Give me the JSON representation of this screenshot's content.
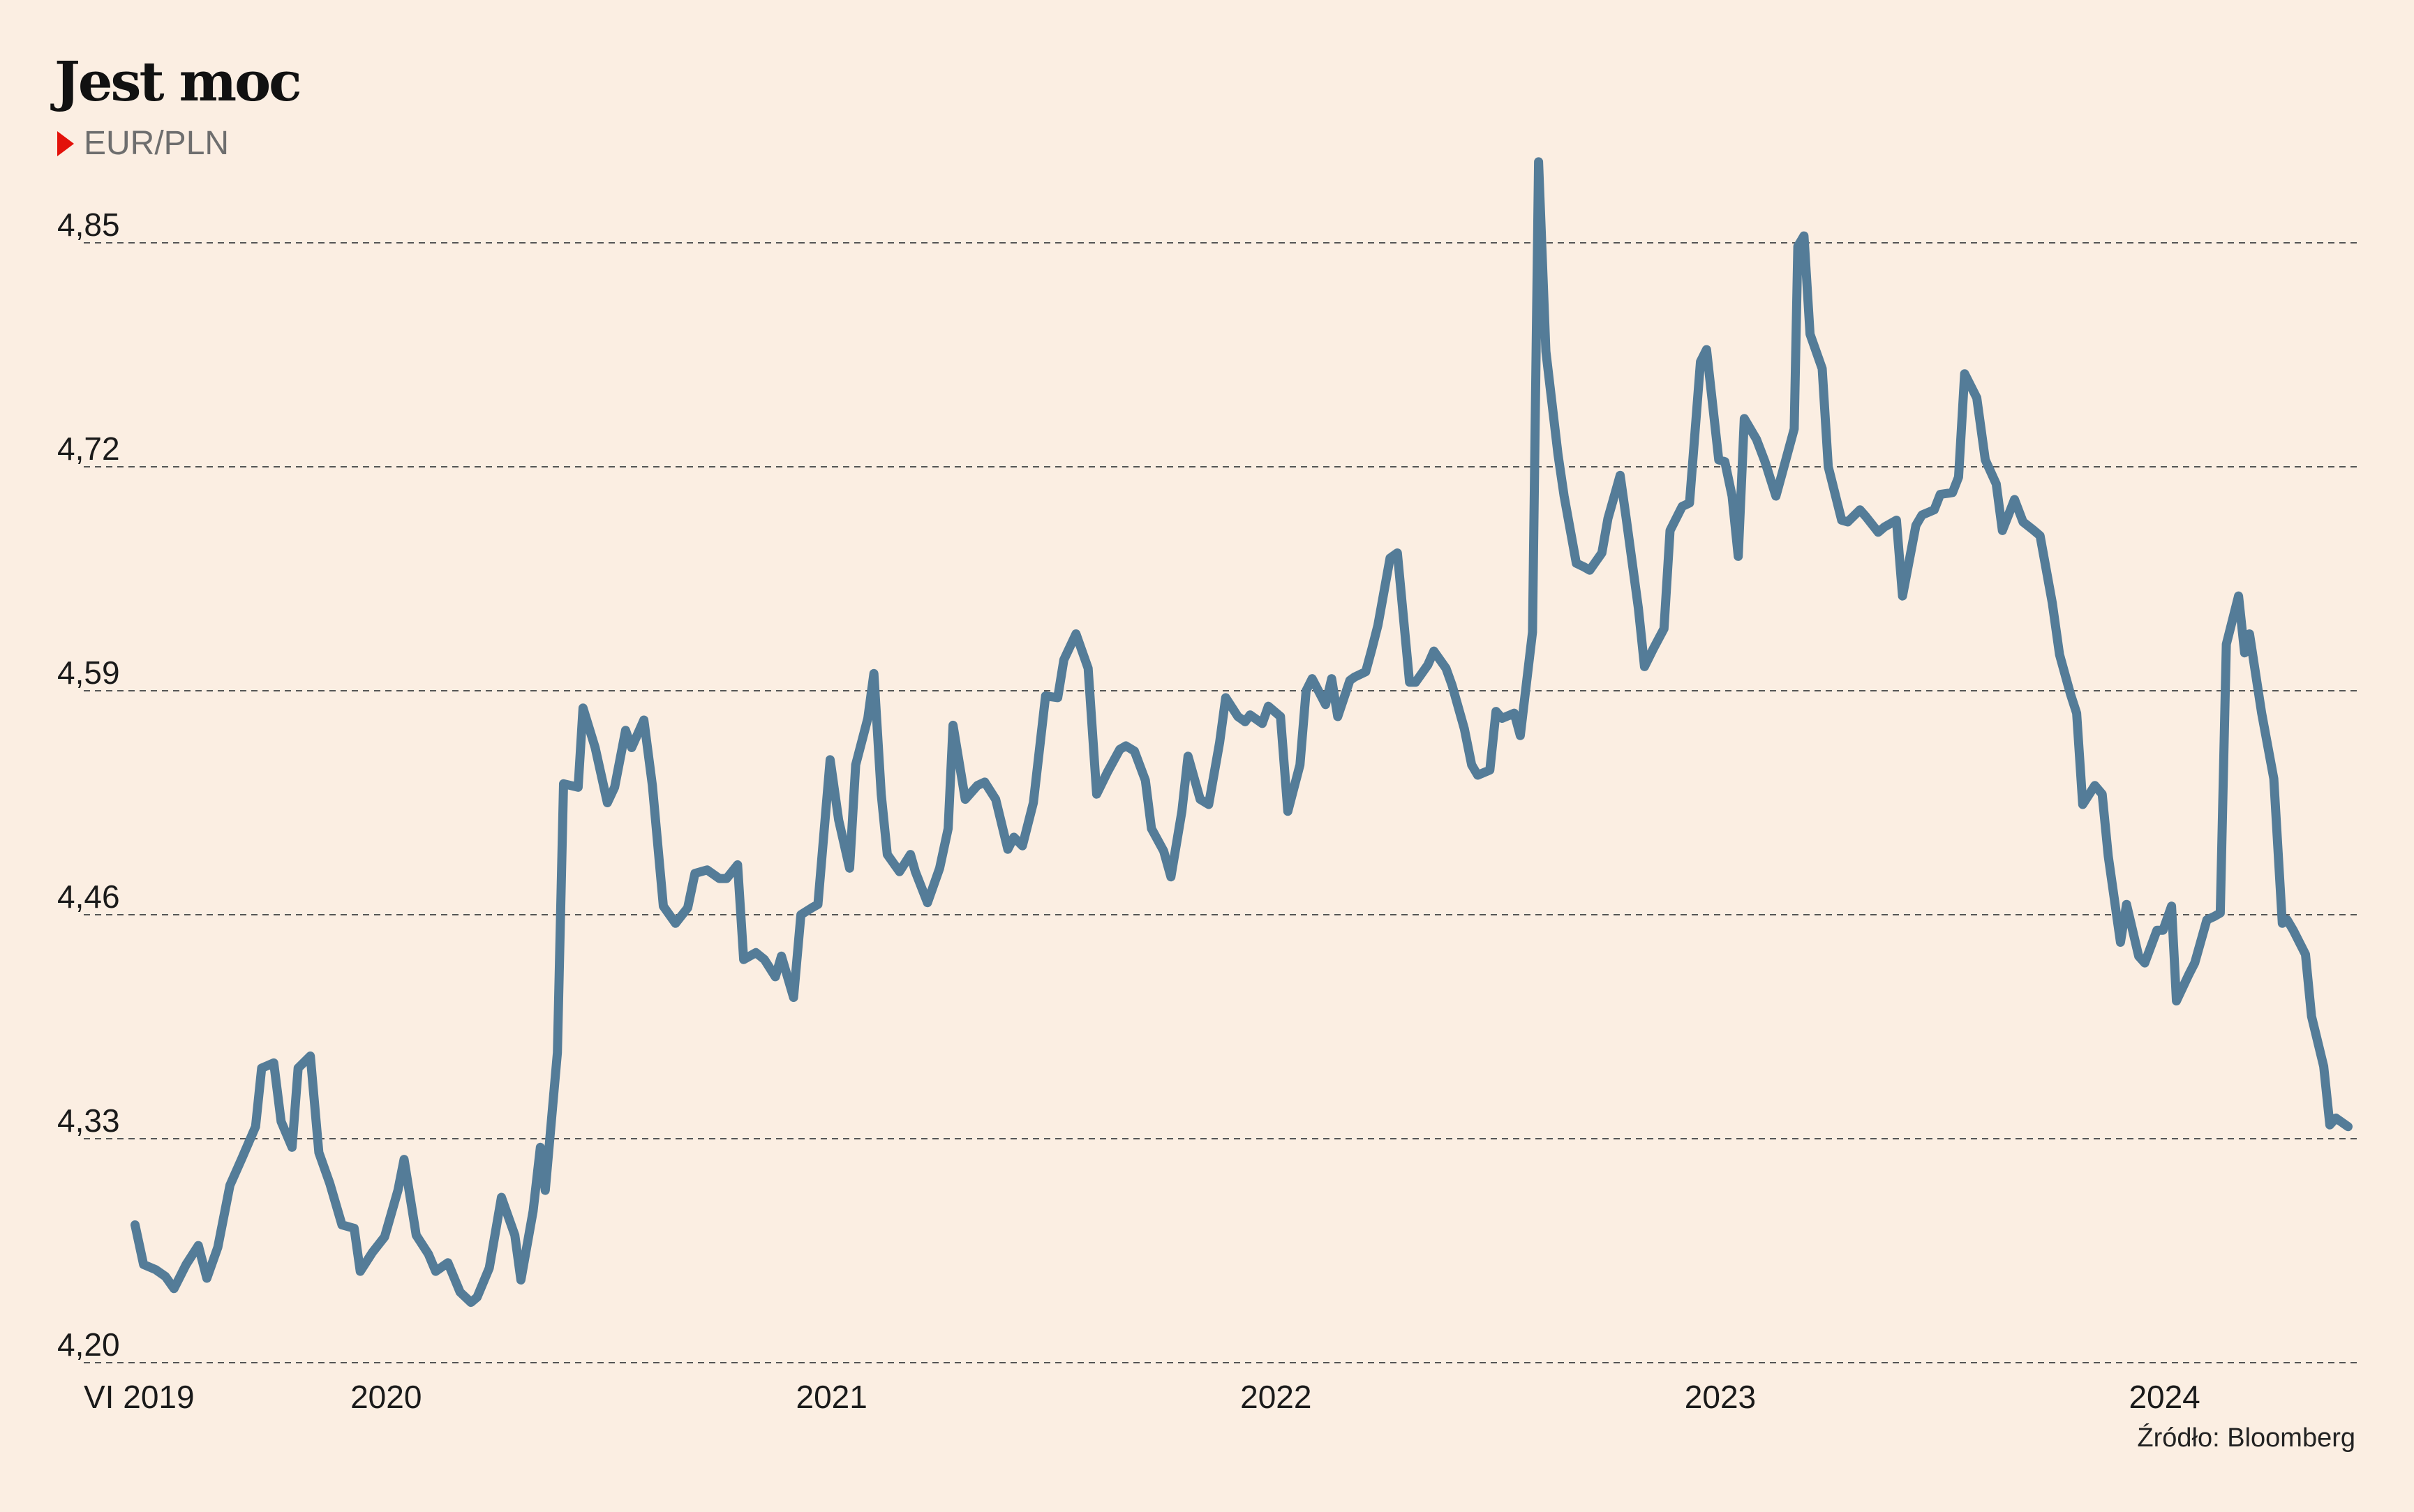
{
  "title": "Jest moc",
  "subtitle": "EUR/PLN",
  "source": "Źródło: Bloomberg",
  "colors": {
    "line": "#547C98",
    "background": "#FBEEE2",
    "marker": "#E3120B",
    "grid": "#555555"
  },
  "chart_data": {
    "type": "line",
    "title": "Jest moc",
    "subtitle": "EUR/PLN",
    "xlabel": "",
    "ylabel": "",
    "ylim": [
      4.2,
      4.85
    ],
    "xlim": [
      "2019-06",
      "2024-05"
    ],
    "yticks": [
      "4,20",
      "4,33",
      "4,46",
      "4,59",
      "4,72",
      "4,85"
    ],
    "ytick_values": [
      4.2,
      4.33,
      4.46,
      4.59,
      4.72,
      4.85
    ],
    "xticks": [
      {
        "label": "VI 2019",
        "date": "2019-06"
      },
      {
        "label": "2020",
        "date": "2020-01"
      },
      {
        "label": "2021",
        "date": "2021-01"
      },
      {
        "label": "2022",
        "date": "2022-01"
      },
      {
        "label": "2023",
        "date": "2023-01"
      },
      {
        "label": "2024",
        "date": "2024-01"
      }
    ],
    "grid": "horizontal dashed",
    "series": [
      {
        "points": [
          [
            "2019-06-03",
            4.28
          ],
          [
            "2019-06-10",
            4.257
          ],
          [
            "2019-06-20",
            4.254
          ],
          [
            "2019-06-28",
            4.25
          ],
          [
            "2019-07-05",
            4.243
          ],
          [
            "2019-07-15",
            4.257
          ],
          [
            "2019-07-25",
            4.268
          ],
          [
            "2019-08-01",
            4.249
          ],
          [
            "2019-08-10",
            4.267
          ],
          [
            "2019-08-20",
            4.303
          ],
          [
            "2019-08-30",
            4.319
          ],
          [
            "2019-09-10",
            4.337
          ],
          [
            "2019-09-15",
            4.371
          ],
          [
            "2019-09-25",
            4.374
          ],
          [
            "2019-10-01",
            4.34
          ],
          [
            "2019-10-10",
            4.325
          ],
          [
            "2019-10-15",
            4.371
          ],
          [
            "2019-10-25",
            4.378
          ],
          [
            "2019-11-01",
            4.322
          ],
          [
            "2019-11-10",
            4.304
          ],
          [
            "2019-11-20",
            4.28
          ],
          [
            "2019-11-30",
            4.278
          ],
          [
            "2019-12-05",
            4.253
          ],
          [
            "2019-12-15",
            4.264
          ],
          [
            "2019-12-25",
            4.273
          ],
          [
            "2020-01-05",
            4.3
          ],
          [
            "2020-01-10",
            4.318
          ],
          [
            "2020-01-20",
            4.274
          ],
          [
            "2020-01-30",
            4.263
          ],
          [
            "2020-02-05",
            4.253
          ],
          [
            "2020-02-15",
            4.258
          ],
          [
            "2020-02-25",
            4.241
          ],
          [
            "2020-03-05",
            4.235
          ],
          [
            "2020-03-10",
            4.238
          ],
          [
            "2020-03-20",
            4.255
          ],
          [
            "2020-03-30",
            4.296
          ],
          [
            "2020-04-10",
            4.274
          ],
          [
            "2020-04-15",
            4.248
          ],
          [
            "2020-04-25",
            4.288
          ],
          [
            "2020-05-01",
            4.325
          ],
          [
            "2020-05-05",
            4.3
          ],
          [
            "2020-05-15",
            4.38
          ],
          [
            "2020-05-20",
            4.536
          ],
          [
            "2020-06-01",
            4.534
          ],
          [
            "2020-06-05",
            4.58
          ],
          [
            "2020-06-15",
            4.557
          ],
          [
            "2020-06-25",
            4.525
          ],
          [
            "2020-07-01",
            4.534
          ],
          [
            "2020-07-10",
            4.567
          ],
          [
            "2020-07-15",
            4.557
          ],
          [
            "2020-07-25",
            4.573
          ],
          [
            "2020-08-01",
            4.535
          ],
          [
            "2020-08-10",
            4.465
          ],
          [
            "2020-08-20",
            4.455
          ],
          [
            "2020-08-30",
            4.464
          ],
          [
            "2020-09-05",
            4.484
          ],
          [
            "2020-09-15",
            4.486
          ],
          [
            "2020-09-25",
            4.481
          ],
          [
            "2020-10-01",
            4.481
          ],
          [
            "2020-10-10",
            4.489
          ],
          [
            "2020-10-15",
            4.434
          ],
          [
            "2020-10-25",
            4.438
          ],
          [
            "2020-11-01",
            4.434
          ],
          [
            "2020-11-10",
            4.424
          ],
          [
            "2020-11-15",
            4.436
          ],
          [
            "2020-11-25",
            4.412
          ],
          [
            "2020-12-01",
            4.46
          ],
          [
            "2020-12-10",
            4.464
          ],
          [
            "2020-12-15",
            4.466
          ],
          [
            "2020-12-25",
            4.55
          ],
          [
            "2021-01-01",
            4.515
          ],
          [
            "2021-01-10",
            4.487
          ],
          [
            "2021-01-15",
            4.547
          ],
          [
            "2021-01-25",
            4.574
          ],
          [
            "2021-01-30",
            4.6
          ],
          [
            "2021-02-05",
            4.53
          ],
          [
            "2021-02-10",
            4.495
          ],
          [
            "2021-02-20",
            4.485
          ],
          [
            "2021-03-01",
            4.495
          ],
          [
            "2021-03-05",
            4.485
          ],
          [
            "2021-03-15",
            4.467
          ],
          [
            "2021-03-25",
            4.487
          ],
          [
            "2021-04-01",
            4.51
          ],
          [
            "2021-04-05",
            4.57
          ],
          [
            "2021-04-15",
            4.527
          ],
          [
            "2021-04-25",
            4.535
          ],
          [
            "2021-05-01",
            4.537
          ],
          [
            "2021-05-10",
            4.527
          ],
          [
            "2021-05-20",
            4.498
          ],
          [
            "2021-05-25",
            4.505
          ],
          [
            "2021-06-01",
            4.5
          ],
          [
            "2021-06-10",
            4.525
          ],
          [
            "2021-06-20",
            4.587
          ],
          [
            "2021-06-30",
            4.586
          ],
          [
            "2021-07-05",
            4.608
          ],
          [
            "2021-07-15",
            4.623
          ],
          [
            "2021-07-25",
            4.603
          ],
          [
            "2021-08-01",
            4.53
          ],
          [
            "2021-08-10",
            4.543
          ],
          [
            "2021-08-20",
            4.556
          ],
          [
            "2021-08-25",
            4.558
          ],
          [
            "2021-09-01",
            4.555
          ],
          [
            "2021-09-10",
            4.538
          ],
          [
            "2021-09-15",
            4.51
          ],
          [
            "2021-09-25",
            4.497
          ],
          [
            "2021-10-01",
            4.482
          ],
          [
            "2021-10-10",
            4.52
          ],
          [
            "2021-10-15",
            4.552
          ],
          [
            "2021-10-25",
            4.527
          ],
          [
            "2021-11-01",
            4.524
          ],
          [
            "2021-11-10",
            4.56
          ],
          [
            "2021-11-15",
            4.586
          ],
          [
            "2021-11-25",
            4.575
          ],
          [
            "2021-12-01",
            4.572
          ],
          [
            "2021-12-05",
            4.576
          ],
          [
            "2021-12-15",
            4.571
          ],
          [
            "2021-12-20",
            4.581
          ],
          [
            "2021-12-30",
            4.575
          ],
          [
            "2022-01-05",
            4.52
          ],
          [
            "2022-01-15",
            4.547
          ],
          [
            "2022-01-20",
            4.59
          ],
          [
            "2022-01-25",
            4.597
          ],
          [
            "2022-02-05",
            4.582
          ],
          [
            "2022-02-10",
            4.597
          ],
          [
            "2022-02-15",
            4.575
          ],
          [
            "2022-02-25",
            4.596
          ],
          [
            "2022-03-01",
            4.598
          ],
          [
            "2022-03-10",
            4.601
          ],
          [
            "2022-03-15",
            4.614
          ],
          [
            "2022-03-20",
            4.628
          ],
          [
            "2022-03-30",
            4.667
          ],
          [
            "2022-04-05",
            4.67
          ],
          [
            "2022-04-15",
            4.595
          ],
          [
            "2022-04-20",
            4.595
          ],
          [
            "2022-04-30",
            4.605
          ],
          [
            "2022-05-05",
            4.613
          ],
          [
            "2022-05-15",
            4.603
          ],
          [
            "2022-05-20",
            4.593
          ],
          [
            "2022-05-30",
            4.568
          ],
          [
            "2022-06-05",
            4.547
          ],
          [
            "2022-06-10",
            4.541
          ],
          [
            "2022-06-20",
            4.544
          ],
          [
            "2022-06-25",
            4.578
          ],
          [
            "2022-06-30",
            4.574
          ],
          [
            "2022-07-10",
            4.577
          ],
          [
            "2022-07-15",
            4.564
          ],
          [
            "2022-07-25",
            4.624
          ],
          [
            "2022-07-30",
            4.897
          ],
          [
            "2022-08-05",
            4.787
          ],
          [
            "2022-08-15",
            4.727
          ],
          [
            "2022-08-20",
            4.703
          ],
          [
            "2022-08-30",
            4.664
          ],
          [
            "2022-09-05",
            4.662
          ],
          [
            "2022-09-10",
            4.66
          ],
          [
            "2022-09-20",
            4.67
          ],
          [
            "2022-09-25",
            4.69
          ],
          [
            "2022-10-05",
            4.715
          ],
          [
            "2022-10-10",
            4.69
          ],
          [
            "2022-10-20",
            4.638
          ],
          [
            "2022-10-25",
            4.604
          ],
          [
            "2022-11-01",
            4.614
          ],
          [
            "2022-11-10",
            4.626
          ],
          [
            "2022-11-15",
            4.683
          ],
          [
            "2022-11-25",
            4.697
          ],
          [
            "2022-12-01",
            4.699
          ],
          [
            "2022-12-10",
            4.781
          ],
          [
            "2022-12-15",
            4.788
          ],
          [
            "2022-12-25",
            4.724
          ],
          [
            "2022-12-30",
            4.723
          ],
          [
            "2023-01-05",
            4.703
          ],
          [
            "2023-01-10",
            4.668
          ],
          [
            "2023-01-15",
            4.748
          ],
          [
            "2023-01-25",
            4.736
          ],
          [
            "2023-02-01",
            4.723
          ],
          [
            "2023-02-10",
            4.703
          ],
          [
            "2023-02-15",
            4.716
          ],
          [
            "2023-02-25",
            4.742
          ],
          [
            "2023-02-28",
            4.848
          ],
          [
            "2023-03-05",
            4.854
          ],
          [
            "2023-03-10",
            4.797
          ],
          [
            "2023-03-20",
            4.777
          ],
          [
            "2023-03-25",
            4.72
          ],
          [
            "2023-04-05",
            4.689
          ],
          [
            "2023-04-10",
            4.688
          ],
          [
            "2023-04-20",
            4.695
          ],
          [
            "2023-04-25",
            4.691
          ],
          [
            "2023-05-05",
            4.682
          ],
          [
            "2023-05-10",
            4.685
          ],
          [
            "2023-05-20",
            4.689
          ],
          [
            "2023-05-25",
            4.645
          ],
          [
            "2023-06-05",
            4.686
          ],
          [
            "2023-06-10",
            4.692
          ],
          [
            "2023-06-20",
            4.695
          ],
          [
            "2023-06-25",
            4.704
          ],
          [
            "2023-07-05",
            4.705
          ],
          [
            "2023-07-10",
            4.714
          ],
          [
            "2023-07-15",
            4.774
          ],
          [
            "2023-07-25",
            4.76
          ],
          [
            "2023-08-01",
            4.724
          ],
          [
            "2023-08-10",
            4.71
          ],
          [
            "2023-08-15",
            4.683
          ],
          [
            "2023-08-25",
            4.701
          ],
          [
            "2023-09-01",
            4.688
          ],
          [
            "2023-09-10",
            4.683
          ],
          [
            "2023-09-15",
            4.68
          ],
          [
            "2023-09-25",
            4.641
          ],
          [
            "2023-10-01",
            4.611
          ],
          [
            "2023-10-10",
            4.588
          ],
          [
            "2023-10-15",
            4.577
          ],
          [
            "2023-10-20",
            4.524
          ],
          [
            "2023-10-30",
            4.535
          ],
          [
            "2023-11-05",
            4.53
          ],
          [
            "2023-11-10",
            4.494
          ],
          [
            "2023-11-20",
            4.444
          ],
          [
            "2023-11-25",
            4.466
          ],
          [
            "2023-12-05",
            4.436
          ],
          [
            "2023-12-10",
            4.432
          ],
          [
            "2023-12-20",
            4.451
          ],
          [
            "2023-12-25",
            4.451
          ],
          [
            "2024-01-01",
            4.465
          ],
          [
            "2024-01-05",
            4.41
          ],
          [
            "2024-01-15",
            4.425
          ],
          [
            "2024-01-20",
            4.432
          ],
          [
            "2024-01-30",
            4.457
          ],
          [
            "2024-02-05",
            4.459
          ],
          [
            "2024-02-10",
            4.461
          ],
          [
            "2024-02-15",
            4.617
          ],
          [
            "2024-02-25",
            4.645
          ],
          [
            "2024-03-01",
            4.612
          ],
          [
            "2024-03-05",
            4.623
          ],
          [
            "2024-03-15",
            4.577
          ],
          [
            "2024-03-25",
            4.539
          ],
          [
            "2024-04-01",
            4.455
          ],
          [
            "2024-04-05",
            4.457
          ],
          [
            "2024-04-10",
            4.451
          ],
          [
            "2024-04-20",
            4.437
          ],
          [
            "2024-04-25",
            4.401
          ],
          [
            "2024-05-05",
            4.372
          ],
          [
            "2024-05-10",
            4.338
          ],
          [
            "2024-05-15",
            4.342
          ],
          [
            "2024-05-25",
            4.337
          ]
        ]
      }
    ]
  }
}
